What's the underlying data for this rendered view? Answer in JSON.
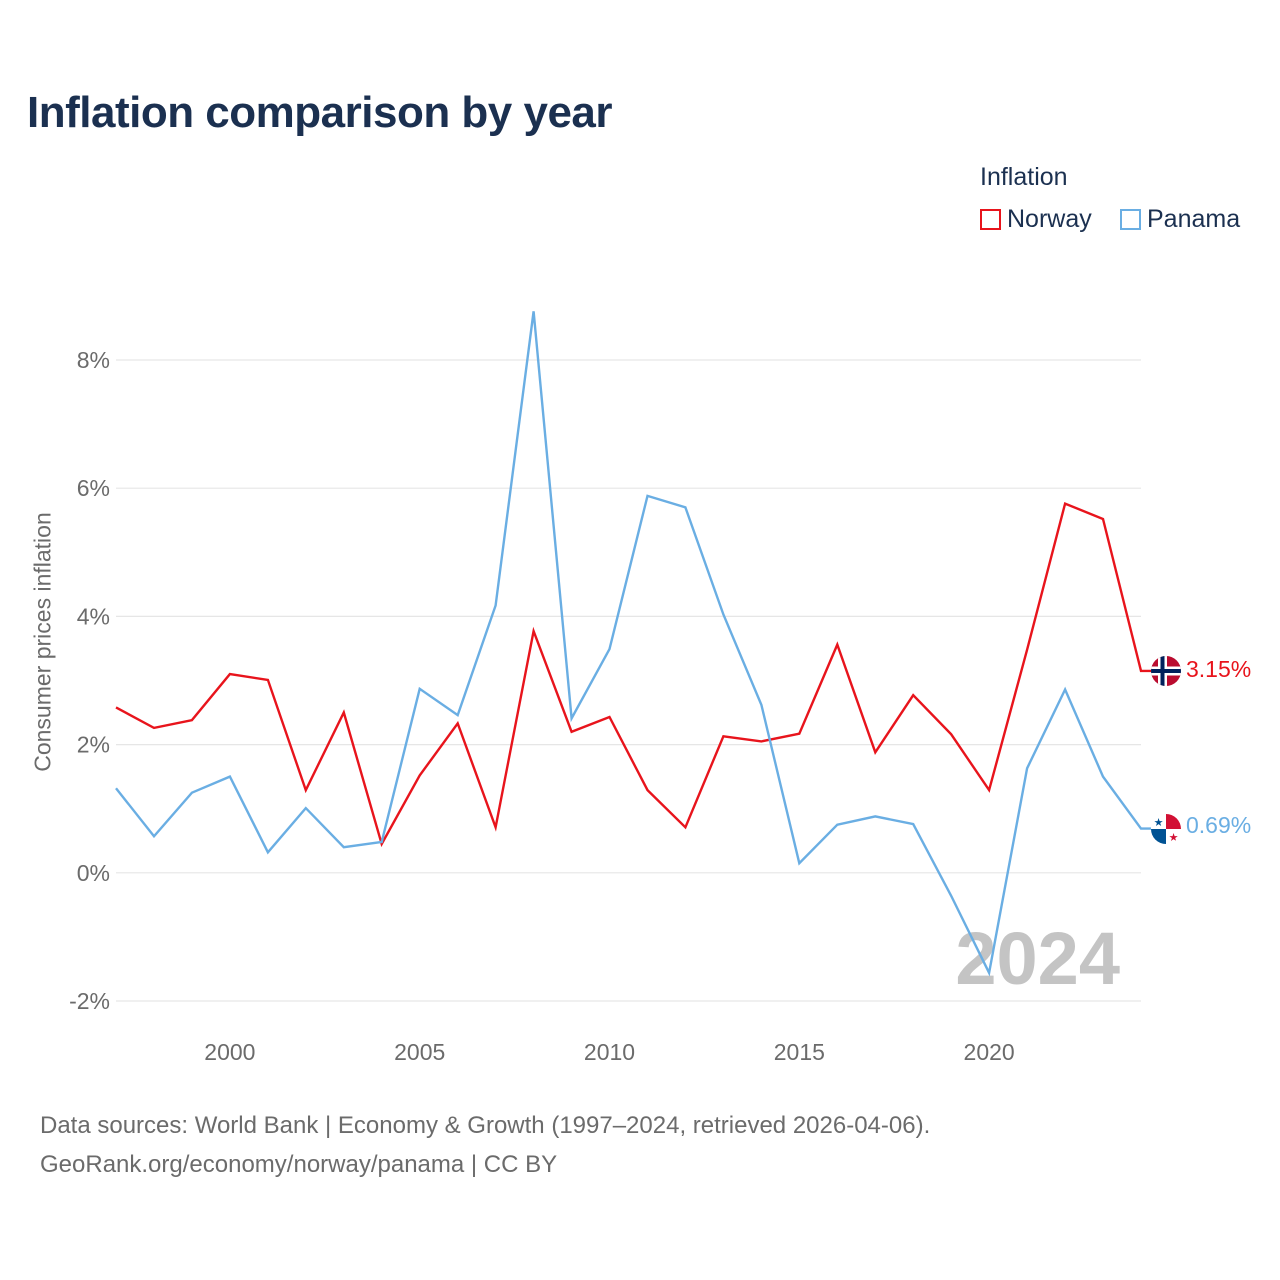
{
  "chart_data": {
    "type": "line",
    "title": "Inflation comparison by year",
    "legend_title": "Inflation",
    "ylabel": "Consumer prices inflation",
    "xlabel": "",
    "x": [
      1997,
      1998,
      1999,
      2000,
      2001,
      2002,
      2003,
      2004,
      2005,
      2006,
      2007,
      2008,
      2009,
      2010,
      2011,
      2012,
      2013,
      2014,
      2015,
      2016,
      2017,
      2018,
      2019,
      2020,
      2021,
      2022,
      2023,
      2024
    ],
    "xticks": [
      2000,
      2005,
      2010,
      2015,
      2020
    ],
    "xtick_labels": [
      "2000",
      "2005",
      "2010",
      "2015",
      "2020"
    ],
    "yticks": [
      -2,
      0,
      2,
      4,
      6,
      8
    ],
    "ytick_labels": [
      "-2%",
      "0%",
      "2%",
      "4%",
      "6%",
      "8%"
    ],
    "ylim": [
      -2,
      8
    ],
    "xlim": [
      1997,
      2024
    ],
    "year_watermark": "2024",
    "series": [
      {
        "name": "Norway",
        "color": "#e8141c",
        "end_label": "3.15%",
        "flag_icon": "norway-flag-icon",
        "values": [
          2.58,
          2.26,
          2.38,
          3.1,
          3.01,
          1.29,
          2.5,
          0.45,
          1.52,
          2.33,
          0.71,
          3.77,
          2.2,
          2.43,
          1.29,
          0.71,
          2.13,
          2.05,
          2.17,
          3.56,
          1.88,
          2.77,
          2.16,
          1.29,
          3.48,
          5.76,
          5.52,
          3.15
        ]
      },
      {
        "name": "Panama",
        "color": "#6aaee3",
        "end_label": "0.69%",
        "flag_icon": "panama-flag-icon",
        "values": [
          1.32,
          0.57,
          1.25,
          1.5,
          0.32,
          1.01,
          0.4,
          0.48,
          2.87,
          2.46,
          4.17,
          8.76,
          2.41,
          3.49,
          5.88,
          5.7,
          4.03,
          2.62,
          0.15,
          0.75,
          0.88,
          0.76,
          -0.36,
          -1.56,
          1.63,
          2.86,
          1.5,
          0.69
        ]
      }
    ]
  },
  "source": {
    "line1": "Data sources: World Bank | Economy & Growth (1997–2024, retrieved 2026-04-06).",
    "line2": "GeoRank.org/economy/norway/panama | CC BY"
  }
}
